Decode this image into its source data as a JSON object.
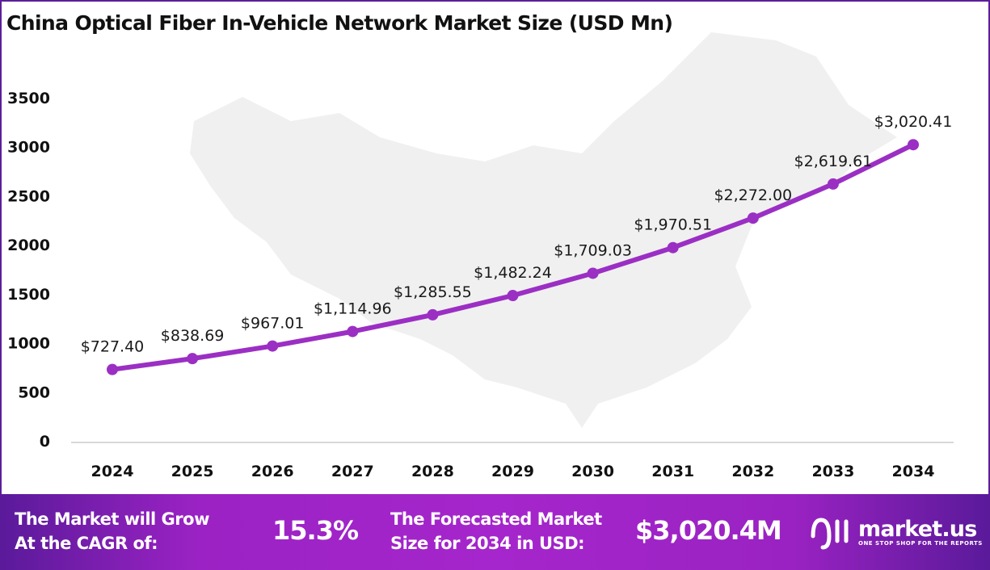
{
  "chart_data": {
    "type": "line",
    "title": "China Optical Fiber In-Vehicle Network Market Size (USD Mn)",
    "categories": [
      "2024",
      "2025",
      "2026",
      "2027",
      "2028",
      "2029",
      "2030",
      "2031",
      "2032",
      "2033",
      "2034"
    ],
    "values": [
      727.4,
      838.69,
      967.01,
      1114.96,
      1285.55,
      1482.24,
      1709.03,
      1970.51,
      2272.0,
      2619.61,
      3020.41
    ],
    "data_labels": [
      "$727.40",
      "$838.69",
      "$967.01",
      "$1,114.96",
      "$1,285.55",
      "$1,482.24",
      "$1,709.03",
      "$1,970.51",
      "$2,272.00",
      "$2,619.61",
      "$3,020.41"
    ],
    "yticks": [
      "0",
      "500",
      "1000",
      "1500",
      "2000",
      "2500",
      "3000",
      "3500"
    ],
    "ylim": [
      0,
      3500
    ],
    "xlabel": "",
    "ylabel": "",
    "grid": false,
    "line_color": "#9b2fc4",
    "background": "faint gray map of China"
  },
  "banner": {
    "cagr_label": "The Market will Grow At the CAGR of:",
    "cagr_line1": "The Market will Grow",
    "cagr_line2": "At the CAGR of:",
    "cagr_value": "15.3%",
    "forecast_line1": "The Forecasted Market",
    "forecast_line2": "Size for 2034 in USD:",
    "forecast_value": "$3,020.4M",
    "logo_name": "market.us",
    "logo_tagline": "ONE STOP SHOP FOR THE REPORTS"
  }
}
